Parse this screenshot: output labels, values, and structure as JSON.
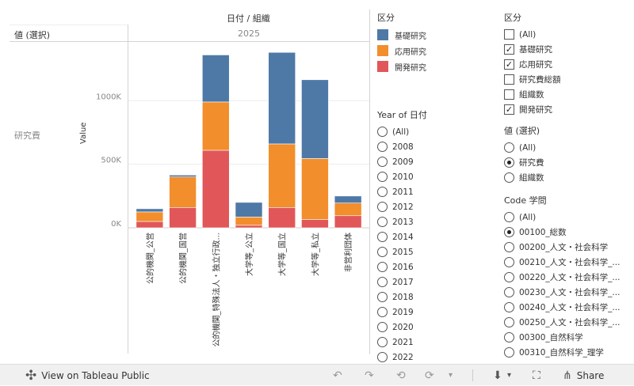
{
  "header": {
    "column_title": "日付 / 組織",
    "row_header_label": "値 (選択)",
    "year": "2025",
    "row_label": "研究費",
    "axis_title": "Value"
  },
  "chart_data": {
    "type": "bar",
    "stacked": true,
    "title": "日付 / 組織",
    "ylabel": "Value",
    "yticks": [
      "0K",
      "500K",
      "1000K"
    ],
    "ylim": [
      0,
      1450
    ],
    "categories": [
      "公的機関_公営",
      "公的機関_国営",
      "公的機関_特殊法人・独立行政...",
      "大学等_公立",
      "大学等_国立",
      "大学等_私立",
      "非営利団体"
    ],
    "series": [
      {
        "name": "開発研究",
        "color": "#e15759",
        "values": [
          50,
          160,
          610,
          20,
          160,
          65,
          95
        ]
      },
      {
        "name": "応用研究",
        "color": "#f28e2b",
        "values": [
          75,
          240,
          380,
          65,
          500,
          480,
          100
        ]
      },
      {
        "name": "基礎研究",
        "color": "#4e79a7",
        "values": [
          25,
          15,
          370,
          115,
          720,
          620,
          55
        ]
      }
    ]
  },
  "legend": {
    "title": "区分",
    "items": [
      {
        "label": "基礎研究",
        "color": "#4e79a7"
      },
      {
        "label": "応用研究",
        "color": "#f28e2b"
      },
      {
        "label": "開発研究",
        "color": "#e15759"
      }
    ]
  },
  "year_filter": {
    "title": "Year of 日付",
    "options": [
      "(All)",
      "2008",
      "2009",
      "2010",
      "2011",
      "2012",
      "2013",
      "2014",
      "2015",
      "2016",
      "2017",
      "2018",
      "2019",
      "2020",
      "2021",
      "2022"
    ]
  },
  "kubun_filter": {
    "title": "区分",
    "options": [
      {
        "label": "(All)",
        "checked": false
      },
      {
        "label": "基礎研究",
        "checked": true
      },
      {
        "label": "応用研究",
        "checked": true
      },
      {
        "label": "研究費総額",
        "checked": false
      },
      {
        "label": "組織数",
        "checked": false
      },
      {
        "label": "開発研究",
        "checked": true
      }
    ]
  },
  "value_filter": {
    "title": "値 (選択)",
    "options": [
      {
        "label": "(All)",
        "selected": false
      },
      {
        "label": "研究費",
        "selected": true
      },
      {
        "label": "組織数",
        "selected": false
      }
    ]
  },
  "code_filter": {
    "title": "Code 学問",
    "options": [
      {
        "label": "(All)",
        "selected": false
      },
      {
        "label": "00100_総数",
        "selected": true
      },
      {
        "label": "00200_人文・社会科学",
        "selected": false
      },
      {
        "label": "00210_人文・社会科学_...",
        "selected": false
      },
      {
        "label": "00220_人文・社会科学_...",
        "selected": false
      },
      {
        "label": "00230_人文・社会科学_...",
        "selected": false
      },
      {
        "label": "00240_人文・社会科学_...",
        "selected": false
      },
      {
        "label": "00250_人文・社会科学_...",
        "selected": false
      },
      {
        "label": "00300_自然科学",
        "selected": false
      },
      {
        "label": "00310_自然科学_理学",
        "selected": false
      }
    ]
  },
  "footer": {
    "view_label": "View on Tableau Public",
    "share_label": "Share",
    "check_mark": "✓",
    "icons": {
      "logo": "✣",
      "undo": "↶",
      "redo": "↷",
      "revert": "⟲",
      "refresh": "⟳",
      "dropdown": "▾",
      "download": "⬇",
      "fullscreen": "⛶",
      "share": "⋔"
    }
  }
}
